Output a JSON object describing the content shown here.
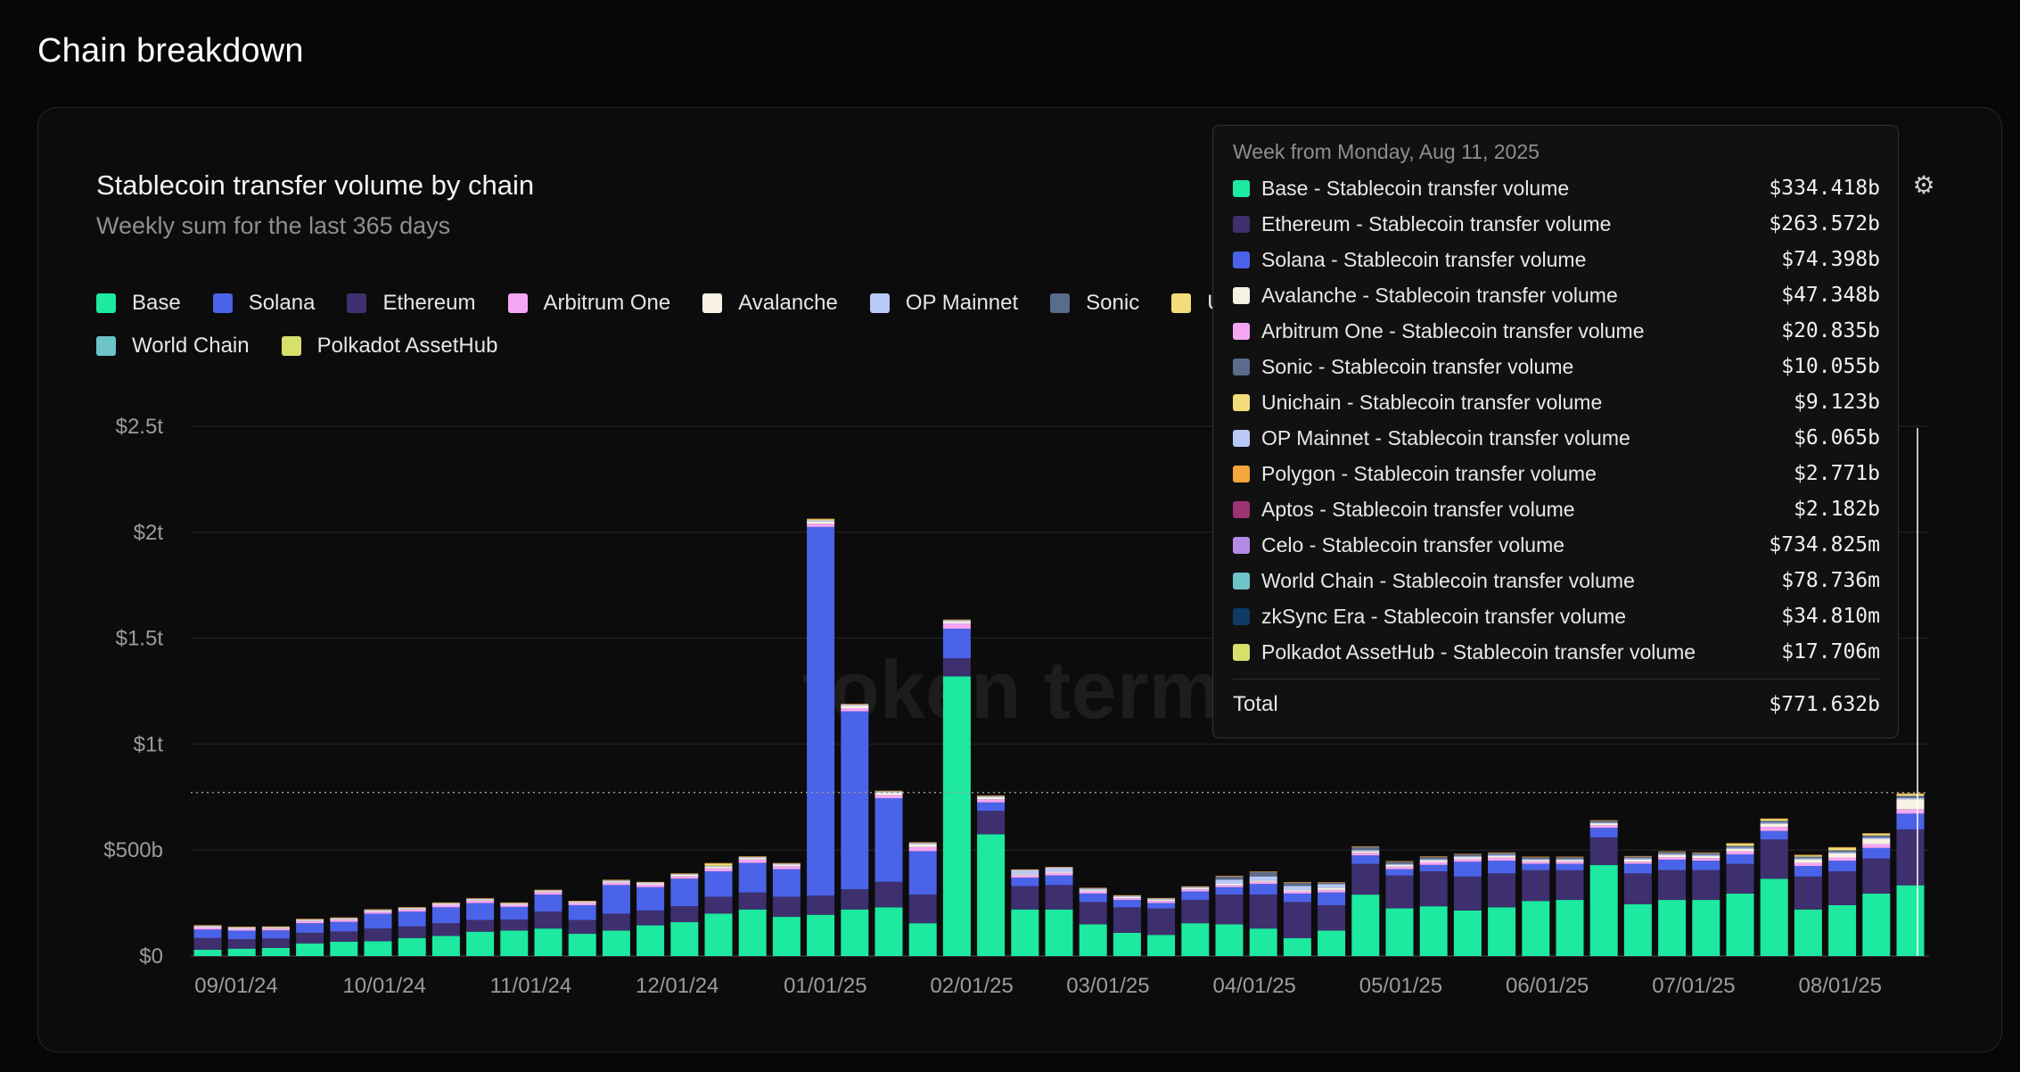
{
  "page": {
    "title": "Chain breakdown"
  },
  "chart_card": {
    "title": "Stablecoin transfer volume by chain",
    "subtitle": "Weekly sum for the last 365 days",
    "watermark": "token terminal",
    "settings_icon": "gear-icon"
  },
  "legend": {
    "row1": [
      {
        "name": "Base",
        "color": "#1de9a0"
      },
      {
        "name": "Solana",
        "color": "#4a63e8"
      },
      {
        "name": "Ethereum",
        "color": "#3e2f6e"
      },
      {
        "name": "Arbitrum One",
        "color": "#f4a6f5"
      },
      {
        "name": "Avalanche",
        "color": "#f8f2e4"
      },
      {
        "name": "OP Mainnet",
        "color": "#b9c9f6"
      },
      {
        "name": "Sonic",
        "color": "#5b6b8c"
      },
      {
        "name": "U",
        "color": "#f2dd7a"
      }
    ],
    "row2": [
      {
        "name": "World Chain",
        "color": "#6ec3c8"
      },
      {
        "name": "Polkadot AssetHub",
        "color": "#d6e06a"
      }
    ]
  },
  "tooltip": {
    "header": "Week from Monday, Aug 11, 2025",
    "rows": [
      {
        "label": "Base - Stablecoin transfer volume",
        "value": "$334.418b",
        "color": "#1de9a0"
      },
      {
        "label": "Ethereum - Stablecoin transfer volume",
        "value": "$263.572b",
        "color": "#3e2f6e"
      },
      {
        "label": "Solana - Stablecoin transfer volume",
        "value": "$74.398b",
        "color": "#4a63e8"
      },
      {
        "label": "Avalanche - Stablecoin transfer volume",
        "value": "$47.348b",
        "color": "#f8f2e4"
      },
      {
        "label": "Arbitrum One - Stablecoin transfer volume",
        "value": "$20.835b",
        "color": "#f4a6f5"
      },
      {
        "label": "Sonic - Stablecoin transfer volume",
        "value": "$10.055b",
        "color": "#5b6b8c"
      },
      {
        "label": "Unichain - Stablecoin transfer volume",
        "value": "$9.123b",
        "color": "#f2dd7a"
      },
      {
        "label": "OP Mainnet - Stablecoin transfer volume",
        "value": "$6.065b",
        "color": "#b9c9f6"
      },
      {
        "label": "Polygon - Stablecoin transfer volume",
        "value": "$2.771b",
        "color": "#f5a73b"
      },
      {
        "label": "Aptos - Stablecoin transfer volume",
        "value": "$2.182b",
        "color": "#9b3470"
      },
      {
        "label": "Celo - Stablecoin transfer volume",
        "value": "$734.825m",
        "color": "#b58be6"
      },
      {
        "label": "World Chain - Stablecoin transfer volume",
        "value": "$78.736m",
        "color": "#6ec3c8"
      },
      {
        "label": "zkSync Era - Stablecoin transfer volume",
        "value": "$34.810m",
        "color": "#0f3a66"
      },
      {
        "label": "Polkadot AssetHub - Stablecoin transfer volume",
        "value": "$17.706m",
        "color": "#d6e06a"
      }
    ],
    "total_label": "Total",
    "total_value": "$771.632b"
  },
  "chart_data": {
    "type": "bar",
    "stacked": true,
    "x_tick_labels": [
      "09/01/24",
      "10/01/24",
      "11/01/24",
      "12/01/24",
      "01/01/25",
      "02/01/25",
      "03/01/25",
      "04/01/25",
      "05/01/25",
      "06/01/25",
      "07/01/25",
      "08/01/25"
    ],
    "y_tick_labels": [
      "$0",
      "$500b",
      "$1t",
      "$1.5t",
      "$2t",
      "$2.5t"
    ],
    "y_ticks": [
      0,
      500,
      1000,
      1500,
      2000,
      2500
    ],
    "ylim": [
      0,
      2500
    ],
    "units": "billions USD",
    "grid": true,
    "highlight_week_index": 50,
    "reference_line_value": 771.632,
    "series": [
      {
        "name": "Base",
        "color": "#1de9a0",
        "values": [
          30,
          35,
          38,
          60,
          68,
          70,
          85,
          95,
          115,
          120,
          130,
          105,
          120,
          145,
          160,
          200,
          220,
          185,
          195,
          220,
          230,
          155,
          1320,
          575,
          220,
          220,
          150,
          110,
          100,
          155,
          150,
          130,
          85,
          120,
          290,
          225,
          235,
          215,
          230,
          260,
          265,
          430,
          245,
          265,
          265,
          295,
          365,
          220,
          240,
          295,
          334
        ]
      },
      {
        "name": "Ethereum",
        "color": "#3e2f6e",
        "values": [
          55,
          45,
          45,
          50,
          48,
          60,
          55,
          60,
          55,
          52,
          80,
          65,
          80,
          70,
          75,
          80,
          80,
          95,
          90,
          95,
          120,
          135,
          85,
          110,
          110,
          115,
          105,
          120,
          125,
          110,
          140,
          160,
          170,
          120,
          145,
          155,
          165,
          160,
          160,
          145,
          140,
          130,
          145,
          140,
          140,
          140,
          185,
          155,
          160,
          165,
          264
        ]
      },
      {
        "name": "Solana",
        "color": "#4a63e8",
        "values": [
          40,
          40,
          38,
          45,
          45,
          70,
          70,
          75,
          80,
          60,
          80,
          70,
          135,
          110,
          130,
          120,
          140,
          130,
          1740,
          840,
          395,
          205,
          140,
          40,
          40,
          45,
          40,
          35,
          25,
          40,
          35,
          50,
          40,
          60,
          40,
          30,
          30,
          70,
          60,
          30,
          30,
          45,
          45,
          50,
          45,
          45,
          40,
          50,
          50,
          50,
          74
        ]
      },
      {
        "name": "Arbitrum One",
        "color": "#f4a6f5",
        "values": [
          10,
          8,
          8,
          10,
          10,
          10,
          10,
          12,
          12,
          10,
          12,
          10,
          12,
          12,
          12,
          14,
          16,
          14,
          16,
          15,
          15,
          20,
          25,
          15,
          10,
          12,
          10,
          8,
          10,
          10,
          10,
          10,
          10,
          12,
          12,
          12,
          14,
          12,
          14,
          10,
          10,
          12,
          10,
          12,
          12,
          14,
          20,
          15,
          15,
          18,
          21
        ]
      },
      {
        "name": "Avalanche",
        "color": "#f8f2e4",
        "values": [
          5,
          5,
          5,
          5,
          5,
          5,
          5,
          5,
          5,
          5,
          5,
          5,
          6,
          6,
          6,
          8,
          8,
          8,
          10,
          12,
          12,
          14,
          10,
          10,
          6,
          6,
          6,
          6,
          6,
          6,
          6,
          6,
          6,
          8,
          8,
          8,
          8,
          8,
          8,
          8,
          8,
          8,
          10,
          10,
          10,
          12,
          14,
          15,
          20,
          25,
          47
        ]
      },
      {
        "name": "OP Mainnet",
        "color": "#b9c9f6",
        "values": [
          3,
          3,
          3,
          3,
          3,
          3,
          3,
          3,
          3,
          3,
          3,
          3,
          4,
          4,
          4,
          4,
          4,
          4,
          5,
          5,
          5,
          5,
          5,
          5,
          20,
          20,
          8,
          5,
          5,
          5,
          20,
          20,
          20,
          20,
          5,
          5,
          5,
          6,
          6,
          5,
          5,
          5,
          6,
          6,
          6,
          6,
          6,
          6,
          6,
          6,
          6
        ]
      },
      {
        "name": "Sonic",
        "color": "#5b6b8c",
        "values": [
          0,
          0,
          0,
          0,
          0,
          0,
          0,
          0,
          0,
          0,
          0,
          0,
          0,
          0,
          0,
          0,
          0,
          0,
          0,
          0,
          0,
          0,
          0,
          0,
          0,
          0,
          0,
          0,
          0,
          0,
          15,
          20,
          15,
          5,
          15,
          10,
          10,
          8,
          8,
          8,
          8,
          8,
          8,
          8,
          8,
          8,
          8,
          8,
          8,
          10,
          10
        ]
      },
      {
        "name": "Unichain",
        "color": "#f2dd7a",
        "values": [
          0,
          0,
          0,
          0,
          0,
          0,
          0,
          0,
          0,
          0,
          0,
          0,
          0,
          0,
          0,
          10,
          0,
          0,
          5,
          0,
          0,
          0,
          0,
          0,
          0,
          0,
          0,
          0,
          0,
          0,
          0,
          0,
          0,
          0,
          0,
          0,
          0,
          0,
          0,
          0,
          0,
          0,
          0,
          0,
          0,
          10,
          8,
          6,
          12,
          8,
          9
        ]
      },
      {
        "name": "Polygon",
        "color": "#f5a73b",
        "values": [
          3,
          3,
          3,
          3,
          3,
          3,
          3,
          3,
          3,
          3,
          3,
          3,
          3,
          3,
          3,
          3,
          3,
          3,
          3,
          3,
          3,
          3,
          3,
          3,
          3,
          3,
          3,
          3,
          3,
          3,
          3,
          3,
          3,
          3,
          3,
          3,
          3,
          3,
          3,
          3,
          3,
          3,
          3,
          3,
          3,
          3,
          3,
          3,
          3,
          3,
          3
        ]
      }
    ]
  }
}
